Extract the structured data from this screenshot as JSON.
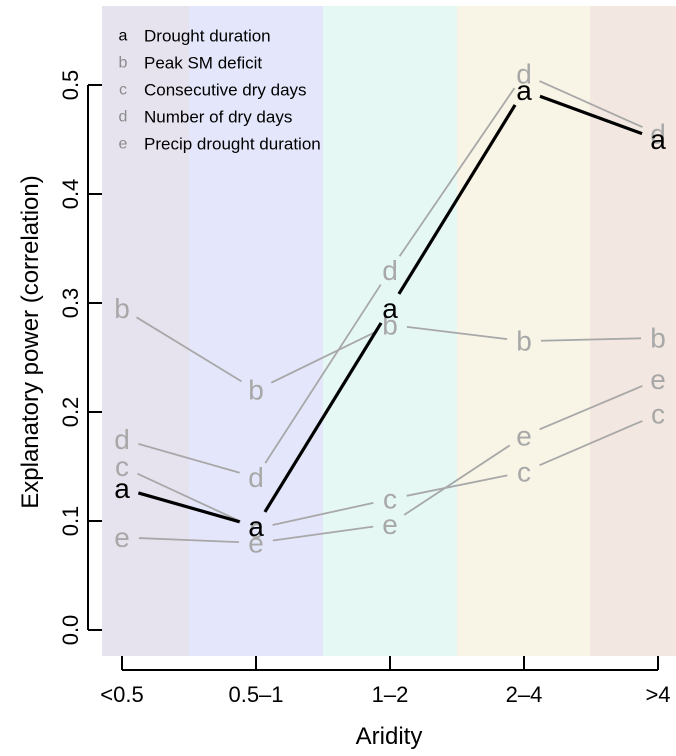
{
  "chart_data": {
    "type": "line",
    "xlabel": "Aridity",
    "ylabel": "Explanatory power (correlation)",
    "categories": [
      "<0.5",
      "0.5–1",
      "1–2",
      "2–4",
      ">4"
    ],
    "ylim": [
      0,
      0.55
    ],
    "yticks": [
      "0.0",
      "0.1",
      "0.2",
      "0.3",
      "0.4",
      "0.5"
    ],
    "ytick_values": [
      0,
      0.1,
      0.2,
      0.3,
      0.4,
      0.5
    ],
    "grid": false,
    "legend_position": "top-left",
    "band_colors": [
      "#e6e3ef",
      "#e4e7fb",
      "#e6f8f4",
      "#f8f5e6",
      "#f3e8e1"
    ],
    "series": [
      {
        "name": "Drought duration",
        "marker": "a",
        "color": "#000000",
        "values": [
          0.13,
          0.095,
          0.295,
          0.495,
          0.45
        ]
      },
      {
        "name": "Peak SM deficit",
        "marker": "b",
        "color": "#a8a8a8",
        "values": [
          0.295,
          0.22,
          0.28,
          0.265,
          0.268
        ]
      },
      {
        "name": "Consecutive dry days",
        "marker": "c",
        "color": "#a8a8a8",
        "values": [
          0.15,
          0.093,
          0.12,
          0.145,
          0.198
        ]
      },
      {
        "name": "Number of dry days",
        "marker": "d",
        "color": "#a8a8a8",
        "values": [
          0.175,
          0.14,
          0.33,
          0.51,
          0.455
        ]
      },
      {
        "name": "Precip drought duration",
        "marker": "e",
        "color": "#a8a8a8",
        "values": [
          0.085,
          0.08,
          0.097,
          0.178,
          0.23
        ]
      }
    ]
  }
}
